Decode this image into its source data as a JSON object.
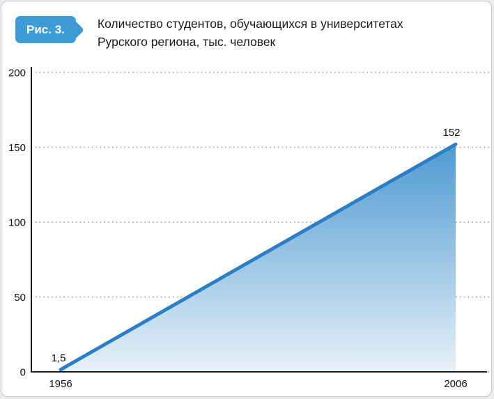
{
  "header": {
    "figure_label": "Рис. 3.",
    "title_line1": "Количество студентов, обучающихся в университетах",
    "title_line2": "Рурского региона, тыс. человек",
    "badge_color": "#3d9bd5"
  },
  "chart_data": {
    "type": "area",
    "title": "Количество студентов, обучающихся в университетах Рурского региона, тыс. человек",
    "x": [
      1956,
      2006
    ],
    "values": [
      1.5,
      152
    ],
    "point_labels": [
      "1,5",
      "152"
    ],
    "x_labels": [
      "1956",
      "2006"
    ],
    "yticks": [
      0,
      50,
      100,
      150,
      200
    ],
    "ylim": [
      0,
      200
    ],
    "xlabel": "",
    "ylabel": "",
    "grid": "dotted-horizontal",
    "legend": "none",
    "colors": {
      "line": "#2b7ec5",
      "fill_top": "#4e9ad1",
      "fill_bottom": "#e8f1f9",
      "gridline": "#9a9a9a",
      "axis": "#1a1a1a",
      "text": "#111111"
    }
  }
}
